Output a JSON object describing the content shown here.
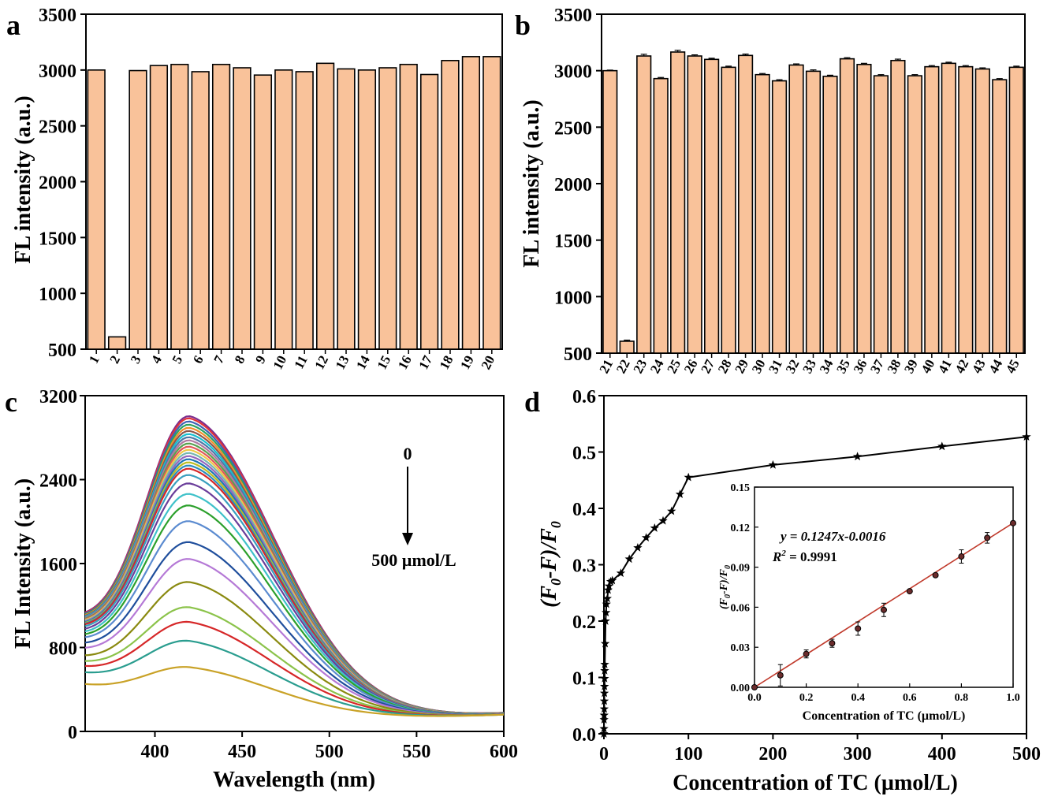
{
  "chart_data": [
    {
      "panel": "a",
      "type": "bar",
      "ylabel": "FL intensity (a.u.)",
      "ylim": [
        500,
        3500
      ],
      "yticks": [
        500,
        1000,
        1500,
        2000,
        2500,
        3000,
        3500
      ],
      "categories": [
        "1",
        "2",
        "3",
        "4",
        "5",
        "6",
        "7",
        "8",
        "9",
        "10",
        "11",
        "12",
        "13",
        "14",
        "15",
        "16",
        "17",
        "18",
        "19",
        "20"
      ],
      "values": [
        3000,
        610,
        2995,
        3040,
        3050,
        2985,
        3050,
        3020,
        2955,
        3000,
        2985,
        3060,
        3010,
        3000,
        3020,
        3050,
        2960,
        3085,
        3120,
        3120
      ],
      "bar_color": "#f9c29a"
    },
    {
      "panel": "b",
      "type": "bar",
      "ylabel": "FL intensity (a.u.)",
      "ylim": [
        500,
        3500
      ],
      "yticks": [
        500,
        1000,
        1500,
        2000,
        2500,
        3000,
        3500
      ],
      "categories": [
        "21",
        "22",
        "23",
        "24",
        "25",
        "26",
        "27",
        "28",
        "29",
        "30",
        "31",
        "32",
        "33",
        "34",
        "35",
        "36",
        "37",
        "38",
        "39",
        "40",
        "41",
        "42",
        "43",
        "44",
        "45"
      ],
      "values": [
        3000,
        605,
        3130,
        2930,
        3165,
        3130,
        3100,
        3030,
        3135,
        2965,
        2910,
        3050,
        2995,
        2950,
        3105,
        3055,
        2955,
        3090,
        2955,
        3035,
        3065,
        3035,
        3015,
        2920,
        3030
      ],
      "errors": [
        5,
        10,
        15,
        10,
        15,
        10,
        10,
        10,
        12,
        10,
        10,
        10,
        12,
        10,
        10,
        10,
        10,
        12,
        10,
        10,
        10,
        10,
        10,
        10,
        10
      ],
      "bar_color": "#f9c29a"
    },
    {
      "panel": "c",
      "type": "line",
      "xlabel": "Wavelength (nm)",
      "ylabel": "FL Intensity (a.u.)",
      "xlim": [
        360,
        600
      ],
      "ylim": [
        0,
        3200
      ],
      "xticks": [
        400,
        450,
        500,
        550,
        600
      ],
      "yticks": [
        0,
        800,
        1600,
        2400,
        3200
      ],
      "annotation_top": "0",
      "annotation_bottom": "500 µmol/L",
      "series": [
        {
          "peak": 3000,
          "start": 980,
          "end": 175,
          "color": "#7b2d8e"
        },
        {
          "peak": 2980,
          "start": 975,
          "end": 175,
          "color": "#e2333a"
        },
        {
          "peak": 2950,
          "start": 970,
          "end": 174,
          "color": "#3d63b4"
        },
        {
          "peak": 2920,
          "start": 965,
          "end": 174,
          "color": "#2ca25f"
        },
        {
          "peak": 2890,
          "start": 960,
          "end": 173,
          "color": "#f28e2b"
        },
        {
          "peak": 2860,
          "start": 955,
          "end": 173,
          "color": "#8c564b"
        },
        {
          "peak": 2830,
          "start": 950,
          "end": 172,
          "color": "#17becf"
        },
        {
          "peak": 2800,
          "start": 945,
          "end": 172,
          "color": "#4e79a7"
        },
        {
          "peak": 2770,
          "start": 940,
          "end": 171,
          "color": "#b07aa1"
        },
        {
          "peak": 2740,
          "start": 935,
          "end": 171,
          "color": "#59a14f"
        },
        {
          "peak": 2710,
          "start": 930,
          "end": 170,
          "color": "#e15759"
        },
        {
          "peak": 2680,
          "start": 925,
          "end": 170,
          "color": "#edc948"
        },
        {
          "peak": 2650,
          "start": 920,
          "end": 169,
          "color": "#76b7b2"
        },
        {
          "peak": 2620,
          "start": 915,
          "end": 169,
          "color": "#9467bd"
        },
        {
          "peak": 2590,
          "start": 910,
          "end": 168,
          "color": "#1f77b4"
        },
        {
          "peak": 2560,
          "start": 905,
          "end": 168,
          "color": "#bcbd22"
        },
        {
          "peak": 2530,
          "start": 900,
          "end": 167,
          "color": "#2b8cbe"
        },
        {
          "peak": 2500,
          "start": 895,
          "end": 167,
          "color": "#d62728"
        },
        {
          "peak": 2440,
          "start": 880,
          "end": 166,
          "color": "#3a9fbf"
        },
        {
          "peak": 2360,
          "start": 860,
          "end": 166,
          "color": "#6a3d9a"
        },
        {
          "peak": 2260,
          "start": 840,
          "end": 165,
          "color": "#3ec1c9"
        },
        {
          "peak": 2150,
          "start": 820,
          "end": 165,
          "color": "#2ca02c"
        },
        {
          "peak": 2000,
          "start": 800,
          "end": 164,
          "color": "#5b8bd0"
        },
        {
          "peak": 1800,
          "start": 760,
          "end": 164,
          "color": "#1f4e9c"
        },
        {
          "peak": 1640,
          "start": 720,
          "end": 163,
          "color": "#b579d6"
        },
        {
          "peak": 1420,
          "start": 660,
          "end": 162,
          "color": "#8a8a10"
        },
        {
          "peak": 1180,
          "start": 620,
          "end": 162,
          "color": "#8bc34a"
        },
        {
          "peak": 1040,
          "start": 580,
          "end": 161,
          "color": "#d62728"
        },
        {
          "peak": 860,
          "start": 530,
          "end": 160,
          "color": "#2a9d8f"
        },
        {
          "peak": 610,
          "start": 430,
          "end": 160,
          "color": "#c9a227"
        }
      ]
    },
    {
      "panel": "d",
      "type": "line",
      "xlabel": "Concentration of TC (µmol/L)",
      "ylabel": "(F0-F)/F0",
      "xlim": [
        0,
        500
      ],
      "ylim": [
        0.0,
        0.6
      ],
      "xticks": [
        0,
        100,
        200,
        300,
        400,
        500
      ],
      "yticks": [
        0.0,
        0.1,
        0.2,
        0.3,
        0.4,
        0.5,
        0.6
      ],
      "x": [
        0,
        0.1,
        0.2,
        0.3,
        0.4,
        0.5,
        0.6,
        0.7,
        0.8,
        0.9,
        1,
        1.5,
        2,
        2.5,
        3,
        4,
        5,
        6,
        8,
        10,
        20,
        30,
        40,
        50,
        60,
        70,
        80,
        90,
        100,
        200,
        300,
        400,
        500
      ],
      "y": [
        0.0,
        0.009,
        0.025,
        0.033,
        0.044,
        0.058,
        0.072,
        0.084,
        0.098,
        0.112,
        0.123,
        0.16,
        0.2,
        0.215,
        0.23,
        0.24,
        0.255,
        0.262,
        0.27,
        0.272,
        0.285,
        0.31,
        0.33,
        0.348,
        0.365,
        0.378,
        0.395,
        0.425,
        0.455,
        0.477,
        0.492,
        0.51,
        0.527
      ],
      "inset": {
        "xlabel": "Concentration of TC (µmol/L)",
        "ylabel": "(F0-F)/F0",
        "xlim": [
          0.0,
          1.0
        ],
        "ylim": [
          0.0,
          0.15
        ],
        "xticks": [
          0.0,
          0.2,
          0.4,
          0.6,
          0.8,
          1.0
        ],
        "yticks": [
          0.0,
          0.03,
          0.06,
          0.09,
          0.12,
          0.15
        ],
        "x": [
          0.0,
          0.1,
          0.2,
          0.3,
          0.4,
          0.5,
          0.6,
          0.7,
          0.8,
          0.9,
          1.0
        ],
        "y": [
          0.0,
          0.009,
          0.025,
          0.033,
          0.044,
          0.058,
          0.072,
          0.084,
          0.098,
          0.112,
          0.123
        ],
        "errors": [
          0.0,
          0.008,
          0.003,
          0.003,
          0.005,
          0.005,
          0.001,
          0.001,
          0.005,
          0.004,
          0.0
        ],
        "equation": "y = 0.1247x-0.0016",
        "r2": "R2 = 0.9991",
        "fit": {
          "slope": 0.1247,
          "intercept": -0.0016
        }
      }
    }
  ],
  "panel_labels": {
    "a": "a",
    "b": "b",
    "c": "c",
    "d": "d"
  }
}
